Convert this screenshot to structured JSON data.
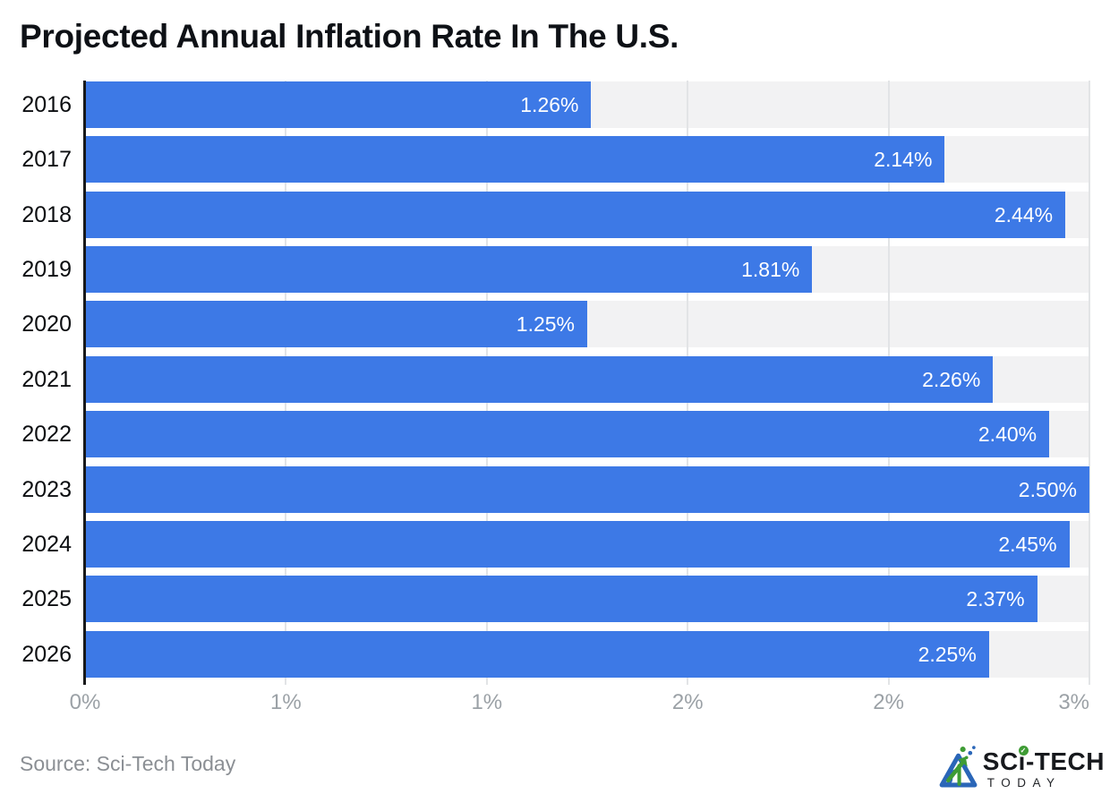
{
  "chart_data": {
    "type": "bar",
    "orientation": "horizontal",
    "title": "Projected Annual Inflation Rate In The U.S.",
    "categories": [
      "2016",
      "2017",
      "2018",
      "2019",
      "2020",
      "2021",
      "2022",
      "2023",
      "2024",
      "2025",
      "2026"
    ],
    "values": [
      1.26,
      2.14,
      2.44,
      1.81,
      1.25,
      2.26,
      2.4,
      2.5,
      2.45,
      2.37,
      2.25
    ],
    "value_labels": [
      "1.26%",
      "2.14%",
      "2.44%",
      "1.81%",
      "1.25%",
      "2.26%",
      "2.40%",
      "2.50%",
      "2.45%",
      "2.37%",
      "2.25%"
    ],
    "xlabel": "",
    "ylabel": "",
    "xlim": [
      0,
      2.5
    ],
    "xticks": [
      {
        "value": 0.0,
        "label": "0%"
      },
      {
        "value": 0.5,
        "label": "1%"
      },
      {
        "value": 1.0,
        "label": "1%"
      },
      {
        "value": 1.5,
        "label": "2%"
      },
      {
        "value": 2.0,
        "label": "2%"
      },
      {
        "value": 2.5,
        "label": "3%"
      }
    ],
    "grid": true,
    "legend": "none",
    "colors": {
      "bar": "#3d79e6",
      "row_background": "#f2f2f3",
      "gridline": "#e2e4e6",
      "axis_line": "#17181a",
      "tick_label": "#9ba1a6",
      "category_label": "#0b0d10",
      "value_label": "#ffffff"
    }
  },
  "footer": {
    "source": "Source: Sci-Tech Today",
    "logo": {
      "brand_left": "SC",
      "brand_i": "i",
      "brand_right": "-TECH",
      "brand_bottom": "TODAY",
      "check_glyph": "✓",
      "colors": {
        "blue": "#2a66b8",
        "green": "#3f9c35",
        "text": "#17191d"
      }
    }
  }
}
